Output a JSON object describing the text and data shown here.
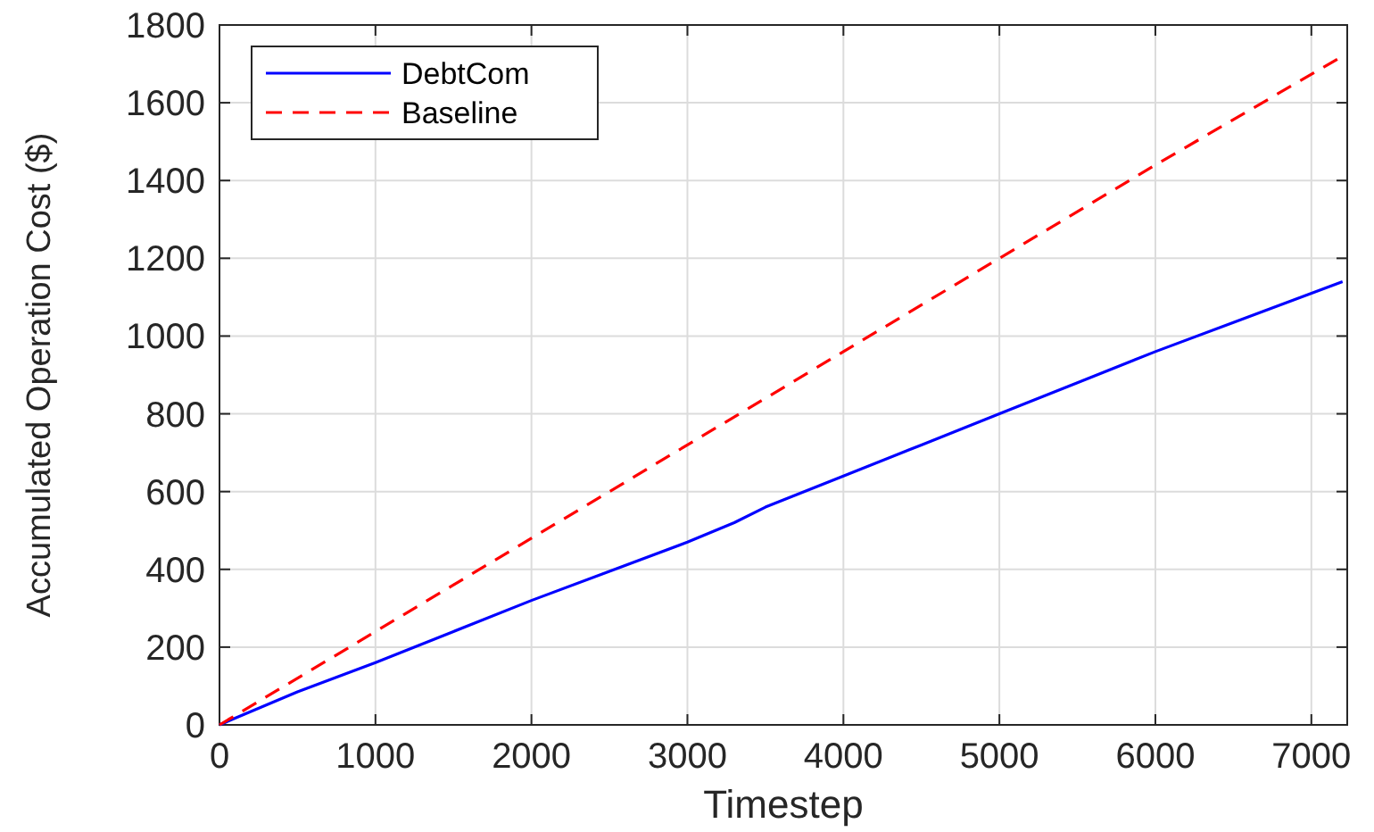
{
  "chart_data": {
    "type": "line",
    "xlabel": "Timestep",
    "ylabel": "Accumulated Operation Cost ($)",
    "xlim": [
      0,
      7230
    ],
    "xticks": [
      0,
      1000,
      2000,
      3000,
      4000,
      5000,
      6000,
      7000
    ],
    "ylim": [
      0,
      1800
    ],
    "yticks": [
      0,
      200,
      400,
      600,
      800,
      1000,
      1200,
      1400,
      1600,
      1800
    ],
    "grid": true,
    "legend": "top left",
    "series": [
      {
        "name": "DebtCom",
        "color": "#0000ff",
        "line_style": "solid",
        "x": [
          0,
          500,
          1000,
          1500,
          2000,
          2500,
          3000,
          3300,
          3500,
          4000,
          4500,
          5000,
          5500,
          6000,
          6500,
          7200
        ],
        "values": [
          0,
          85,
          160,
          240,
          320,
          395,
          470,
          520,
          560,
          640,
          720,
          800,
          880,
          960,
          1035,
          1140
        ]
      },
      {
        "name": "Baseline",
        "color": "#ff0000",
        "line_style": "dashed",
        "x": [
          0,
          1000,
          2000,
          3000,
          4000,
          5000,
          6000,
          7200
        ],
        "values": [
          0,
          240,
          480,
          720,
          960,
          1200,
          1440,
          1720
        ]
      }
    ]
  }
}
